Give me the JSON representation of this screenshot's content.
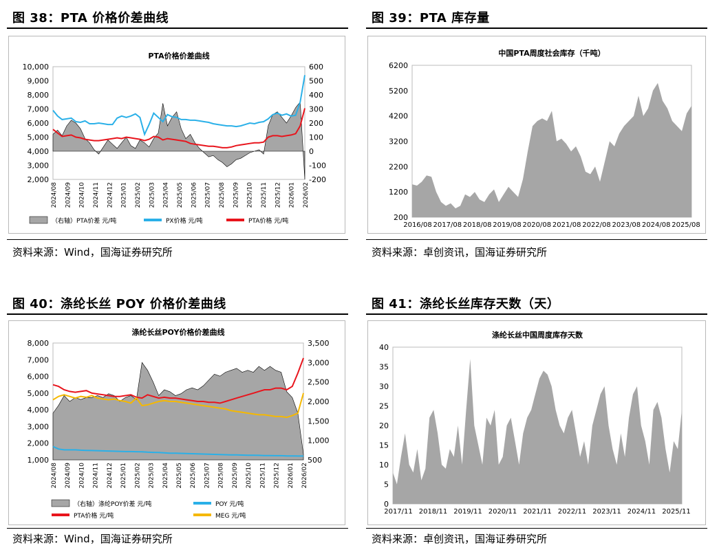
{
  "fig38": {
    "title": "图 38：PTA 价格价差曲线",
    "source": "资料来源：Wind，国海证券研究所",
    "chart_data": {
      "type": "area",
      "title": "PTA价格价差曲线",
      "x_ticks": [
        "2024/08",
        "2024/09",
        "2024/10",
        "2024/11",
        "2024/12",
        "2025/01",
        "2025/02",
        "2025/03",
        "2025/04",
        "2025/05",
        "2025/06",
        "2025/07",
        "2025/08",
        "2025/09",
        "2025/10",
        "2025/11",
        "2025/12",
        "2026/01",
        "2026/02"
      ],
      "left_axis": {
        "ticks": [
          "10,000",
          "9,000",
          "8,000",
          "7,000",
          "6,000",
          "5,000",
          "4,000",
          "3,000",
          "2,000"
        ],
        "ylim": [
          2000,
          10000
        ]
      },
      "right_axis": {
        "ticks": [
          "600",
          "500",
          "400",
          "300",
          "200",
          "100",
          "0",
          "-100",
          "-200"
        ],
        "ylim": [
          -200,
          600
        ]
      },
      "series": [
        {
          "name": "（右轴）PTA价差 元/吨",
          "axis": "right",
          "kind": "area",
          "color": "#a6a6a6",
          "values": [
            120,
            150,
            110,
            180,
            220,
            200,
            160,
            90,
            60,
            10,
            -20,
            30,
            80,
            50,
            20,
            60,
            100,
            40,
            20,
            80,
            60,
            30,
            90,
            130,
            340,
            180,
            240,
            280,
            160,
            90,
            120,
            60,
            20,
            -10,
            -40,
            -30,
            -60,
            -80,
            -110,
            -90,
            -60,
            -50,
            -30,
            -10,
            0,
            10,
            -20,
            180,
            260,
            280,
            240,
            200,
            250,
            310,
            350,
            -200
          ]
        },
        {
          "name": "PX价格 元/吨",
          "axis": "left",
          "kind": "line",
          "color": "#2ab0e8",
          "values": [
            6900,
            6500,
            6250,
            6300,
            6350,
            6100,
            6050,
            6150,
            5950,
            5950,
            6000,
            5950,
            5900,
            5900,
            6350,
            6500,
            6400,
            6500,
            6650,
            6400,
            5200,
            5900,
            6700,
            6400,
            6100,
            6600,
            6450,
            6400,
            6250,
            6250,
            6200,
            6200,
            6150,
            6100,
            6050,
            5950,
            5900,
            5850,
            5800,
            5800,
            5750,
            5800,
            5900,
            6000,
            5950,
            6050,
            6100,
            6300,
            6600,
            6700,
            6550,
            6650,
            6500,
            6550,
            7500,
            9400
          ]
        },
        {
          "name": "PTA价格 元/吨",
          "axis": "left",
          "kind": "line",
          "color": "#e8141c",
          "values": [
            5550,
            5300,
            5050,
            5100,
            5150,
            5000,
            4950,
            4850,
            4800,
            4750,
            4750,
            4800,
            4850,
            4900,
            4950,
            4900,
            5000,
            4950,
            4900,
            4850,
            4750,
            4850,
            5050,
            5000,
            4800,
            4900,
            4850,
            4800,
            4750,
            4700,
            4550,
            4500,
            4450,
            4400,
            4350,
            4350,
            4300,
            4250,
            4250,
            4300,
            4400,
            4450,
            4500,
            4550,
            4600,
            4600,
            4650,
            5000,
            5100,
            5100,
            5050,
            5100,
            5150,
            5250,
            5800,
            7050
          ]
        }
      ]
    }
  },
  "fig39": {
    "title": "图 39：PTA 库存量",
    "source": "资料来源：卓创资讯，国海证券研究所",
    "chart_data": {
      "type": "area",
      "title": "中国PTA周度社会库存（千吨）",
      "x_ticks": [
        "2016/08",
        "2017/08",
        "2018/08",
        "2019/08",
        "2020/08",
        "2021/08",
        "2022/08",
        "2023/08",
        "2024/08",
        "2025/08"
      ],
      "y_ticks": [
        "6200",
        "5200",
        "4200",
        "3200",
        "2200",
        "1200",
        "200"
      ],
      "ylim": [
        200,
        6200
      ],
      "series": [
        {
          "name": "中国PTA周度社会库存",
          "color": "#a6a6a6",
          "values": [
            1500,
            1450,
            1600,
            1850,
            1800,
            1200,
            800,
            650,
            750,
            550,
            650,
            1100,
            1000,
            1200,
            900,
            800,
            1100,
            1300,
            800,
            1100,
            1400,
            1200,
            1000,
            1700,
            2800,
            3800,
            4000,
            4100,
            4000,
            4400,
            3200,
            3300,
            3100,
            2800,
            3000,
            2600,
            2000,
            1900,
            2200,
            1600,
            2400,
            3200,
            3000,
            3500,
            3800,
            4000,
            4200,
            5000,
            4200,
            4500,
            5200,
            5500,
            4800,
            4500,
            4000,
            3800,
            3600,
            4300,
            4600
          ]
        }
      ]
    }
  },
  "fig40": {
    "title": "图 40：涤纶长丝 POY 价格价差曲线",
    "source": "资料来源：Wind，国海证券研究所",
    "chart_data": {
      "type": "area",
      "title": "涤纶长丝POY价格价差曲线",
      "x_ticks": [
        "2024/08",
        "2024/09",
        "2024/10",
        "2024/11",
        "2024/12",
        "2025/01",
        "2025/02",
        "2025/03",
        "2025/04",
        "2025/05",
        "2025/06",
        "2025/07",
        "2025/08",
        "2025/09",
        "2025/10",
        "2025/11",
        "2025/12",
        "2026/01",
        "2026/02"
      ],
      "left_axis": {
        "ticks": [
          "8,000",
          "7,000",
          "6,000",
          "5,000",
          "4,000",
          "3,000",
          "2,000",
          "1,000"
        ],
        "ylim": [
          1000,
          8000
        ]
      },
      "right_axis": {
        "ticks": [
          "3,500",
          "3,000",
          "2,500",
          "2,000",
          "1,500",
          "1,000",
          "500"
        ],
        "ylim": [
          500,
          3500
        ]
      },
      "series": [
        {
          "name": "（右轴）涤纶POY价差 元/吨",
          "axis": "right",
          "kind": "area",
          "color": "#a6a6a6",
          "values": [
            1700,
            1900,
            2150,
            2000,
            2100,
            2050,
            2100,
            2100,
            2150,
            2100,
            2200,
            2150,
            2000,
            2100,
            2150,
            2050,
            3000,
            2800,
            2500,
            2150,
            2300,
            2250,
            2150,
            2200,
            2300,
            2350,
            2300,
            2400,
            2550,
            2700,
            2650,
            2750,
            2800,
            2850,
            2750,
            2800,
            2750,
            2900,
            2800,
            2900,
            2800,
            2750,
            2250,
            2100,
            1700,
            650
          ]
        },
        {
          "name": "PTA价格 元/吨",
          "axis": "left",
          "kind": "line",
          "color": "#e8141c",
          "values": [
            5500,
            5400,
            5200,
            5100,
            5050,
            5100,
            5150,
            5000,
            4950,
            4900,
            4850,
            4800,
            4800,
            4850,
            4900,
            4750,
            4700,
            4900,
            4800,
            4700,
            4750,
            4700,
            4700,
            4650,
            4600,
            4550,
            4500,
            4500,
            4450,
            4450,
            4400,
            4500,
            4600,
            4700,
            4800,
            4900,
            5000,
            5100,
            5200,
            5200,
            5300,
            5300,
            5200,
            5400,
            6200,
            7100
          ]
        },
        {
          "name": "POY 元/吨",
          "axis": "left",
          "kind": "line",
          "color": "#2ab0e8",
          "values": [
            1800,
            1650,
            1600,
            1600,
            1600,
            1580,
            1570,
            1560,
            1550,
            1540,
            1530,
            1520,
            1510,
            1500,
            1500,
            1490,
            1480,
            1460,
            1450,
            1440,
            1420,
            1400,
            1400,
            1390,
            1380,
            1370,
            1360,
            1350,
            1340,
            1330,
            1320,
            1310,
            1300,
            1300,
            1290,
            1280,
            1280,
            1270,
            1260,
            1260,
            1250,
            1250,
            1240,
            1240,
            1230,
            1230
          ]
        },
        {
          "name": "MEG 元/吨",
          "axis": "left",
          "kind": "line",
          "color": "#f5b800",
          "values": [
            4600,
            4800,
            4900,
            4800,
            4700,
            4800,
            4750,
            4850,
            4700,
            4650,
            4600,
            4650,
            4550,
            4500,
            4400,
            4700,
            4250,
            4300,
            4400,
            4500,
            4550,
            4500,
            4500,
            4450,
            4400,
            4350,
            4300,
            4250,
            4200,
            4150,
            4100,
            4050,
            3950,
            3900,
            3850,
            3800,
            3750,
            3700,
            3700,
            3650,
            3600,
            3600,
            3550,
            3650,
            3800,
            5000
          ]
        }
      ]
    }
  },
  "fig41": {
    "title": "图 41：涤纶长丝库存天数（天）",
    "source": "资料来源：卓创资讯，国海证券研究所",
    "chart_data": {
      "type": "area",
      "title": "涤纶长丝中国周度库存天数",
      "x_ticks": [
        "2017/11",
        "2018/11",
        "2019/11",
        "2020/11",
        "2021/11",
        "2022/11",
        "2023/11",
        "2024/11",
        "2025/11"
      ],
      "y_ticks": [
        "40",
        "35",
        "30",
        "25",
        "20",
        "15",
        "10",
        "5",
        "0"
      ],
      "ylim": [
        0,
        40
      ],
      "series": [
        {
          "name": "涤纶长丝中国周度库存天数",
          "color": "#a6a6a6",
          "values": [
            8,
            5,
            12,
            18,
            10,
            8,
            14,
            6,
            9,
            22,
            24,
            18,
            10,
            9,
            14,
            12,
            20,
            10,
            24,
            37,
            20,
            15,
            10,
            22,
            20,
            24,
            10,
            12,
            20,
            22,
            16,
            10,
            18,
            22,
            24,
            28,
            32,
            34,
            33,
            30,
            24,
            20,
            18,
            22,
            24,
            18,
            12,
            16,
            10,
            20,
            24,
            28,
            30,
            20,
            14,
            10,
            18,
            12,
            22,
            28,
            30,
            20,
            16,
            10,
            24,
            26,
            22,
            14,
            8,
            16,
            14,
            24
          ]
        }
      ]
    }
  }
}
